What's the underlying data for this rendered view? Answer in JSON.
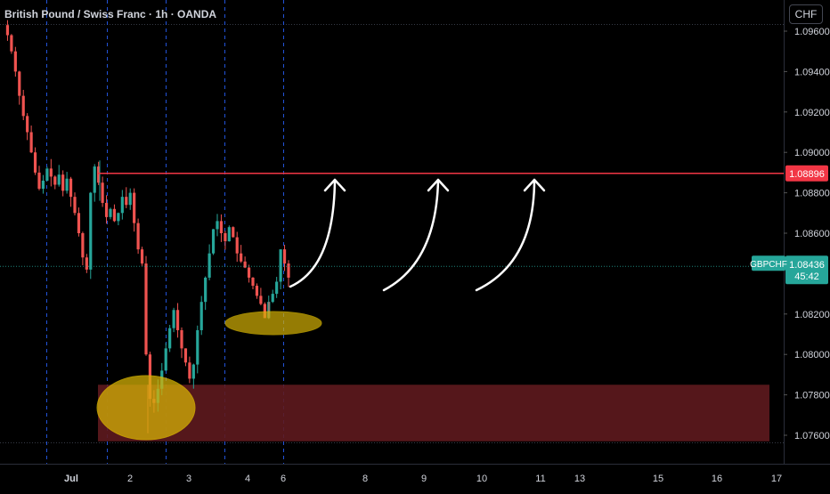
{
  "title": "British Pound / Swiss Franc · 1h · OANDA",
  "currency_button": "CHF",
  "colors": {
    "background": "#000000",
    "grid": "#1e222d",
    "session_line": "#2962ff",
    "candle_up": "#26a69a",
    "candle_down": "#ef5350",
    "resistance": "#f23645",
    "demand_zone": "#5e1a1e",
    "highlight": "#d4b106",
    "arrow": "#ffffff",
    "axis_text": "#d1d4dc",
    "price_badge": "#26a69a"
  },
  "price_badge": {
    "symbol": "GBPCHF",
    "price": "1.08436",
    "countdown": "45:42"
  },
  "resistance_label": "1.08896",
  "chart_data": {
    "type": "candlestick",
    "symbol": "GBPCHF",
    "timeframe": "1h",
    "source": "OANDA",
    "y_ticks": [
      "1.09600",
      "1.09400",
      "1.09200",
      "1.09000",
      "1.08800",
      "1.08600",
      "1.08200",
      "1.08000",
      "1.07800",
      "1.07600"
    ],
    "x_ticks": [
      "Jul",
      "2",
      "3",
      "4",
      "6",
      "8",
      "9",
      "10",
      "11",
      "13",
      "15",
      "16",
      "17"
    ],
    "ylim": [
      1.0748,
      1.0978
    ],
    "current_price": 1.08436,
    "resistance_level": 1.08896,
    "demand_zone": {
      "top": 1.0785,
      "bottom": 1.0757
    },
    "price_path": [
      1.0963,
      1.0958,
      1.095,
      1.094,
      1.0928,
      1.0918,
      1.091,
      1.09,
      1.089,
      1.0882,
      1.0886,
      1.0892,
      1.0888,
      1.0884,
      1.0889,
      1.0881,
      1.0887,
      1.0878,
      1.087,
      1.086,
      1.0848,
      1.0842,
      1.088,
      1.0893,
      1.0885,
      1.0875,
      1.0868,
      1.0872,
      1.0866,
      1.087,
      1.0878,
      1.0874,
      1.088,
      1.0865,
      1.0852,
      1.0845,
      1.08,
      1.0778,
      1.0776,
      1.0783,
      1.0792,
      1.0803,
      1.0813,
      1.0822,
      1.0812,
      1.0803,
      1.0796,
      1.0788,
      1.0795,
      1.0812,
      1.0826,
      1.0838,
      1.085,
      1.0862,
      1.0866,
      1.086,
      1.0856,
      1.0863,
      1.0858,
      1.085,
      1.0846,
      1.0843,
      1.0838,
      1.0834,
      1.0829,
      1.0825,
      1.0818,
      1.0826,
      1.083,
      1.0836,
      1.0852,
      1.0845,
      1.0838
    ]
  }
}
